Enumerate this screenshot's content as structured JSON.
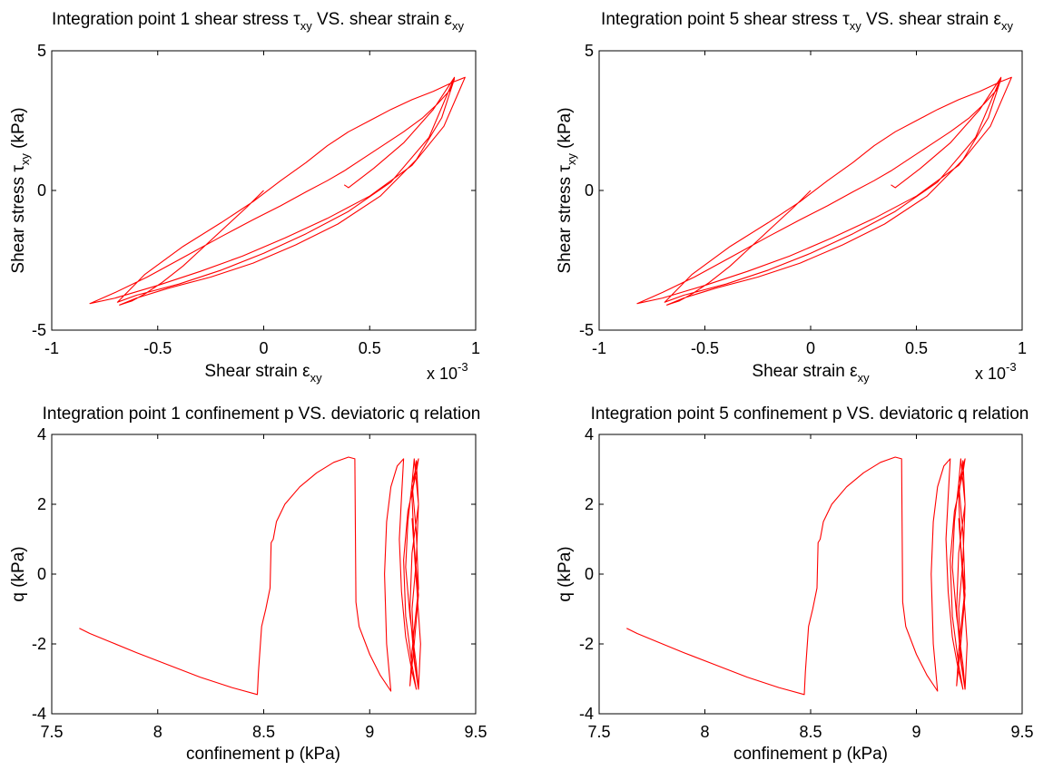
{
  "figure": {
    "line_color": "#ff0000"
  },
  "chart_data": [
    {
      "type": "line",
      "title": "Integration point 1 shear stress τxy VS. shear strain εxy",
      "title_parts": {
        "a": "Integration point 1 shear stress ",
        "tau": "τ",
        "sub1": "xy",
        "mid": " VS. shear strain ",
        "eps": "ε",
        "sub2": "xy"
      },
      "xlabel": "Shear strain εxy",
      "xlabel_parts": {
        "main": "Shear strain ",
        "eps": "ε",
        "sub": "xy"
      },
      "ylabel": "Shear stress τxy (kPa)",
      "ylabel_parts": {
        "main": "Shear stress ",
        "tau": "τ",
        "sub": "xy",
        "unit": " (kPa)"
      },
      "x_multiplier": {
        "base": "x 10",
        "exp": "-3"
      },
      "xlim": [
        -1,
        1
      ],
      "ylim": [
        -5,
        5
      ],
      "xticks": [
        "-1",
        "-0.5",
        "0",
        "0.5",
        "1"
      ],
      "yticks": [
        "-5",
        "0",
        "5"
      ],
      "grid": false,
      "series": [
        {
          "x": [
            0,
            -0.08,
            -0.18,
            -0.28,
            -0.38,
            -0.48,
            -0.56,
            -0.62,
            -0.66,
            -0.68,
            -0.6,
            -0.45,
            -0.25,
            -0.05,
            0.15,
            0.35,
            0.55,
            0.72,
            0.84,
            0.9,
            0.88,
            0.82,
            0.75,
            0.66,
            0.56,
            0.46,
            0.38,
            0.3,
            0.2,
            0.08,
            -0.05,
            -0.2,
            -0.38,
            -0.55,
            -0.7,
            -0.82,
            -0.7,
            -0.5,
            -0.3,
            -0.1,
            0.1,
            0.3,
            0.5,
            0.7,
            0.85,
            0.95,
            0.9,
            0.8,
            0.7,
            0.6,
            0.5,
            0.4,
            0.3,
            0.2,
            0.08,
            -0.05,
            -0.2,
            -0.38,
            -0.56,
            -0.69,
            -0.6,
            -0.4,
            -0.2,
            0,
            0.2,
            0.4,
            0.6,
            0.78,
            0.9,
            0.8,
            0.66,
            0.52,
            0.4,
            0.38
          ],
          "y": [
            0,
            -0.6,
            -1.3,
            -2.0,
            -2.7,
            -3.3,
            -3.7,
            -3.95,
            -4.05,
            -4.1,
            -3.85,
            -3.5,
            -3.1,
            -2.6,
            -1.95,
            -1.2,
            -0.2,
            1.1,
            2.6,
            4.0,
            3.6,
            3.1,
            2.6,
            2.1,
            1.6,
            1.1,
            0.7,
            0.35,
            -0.05,
            -0.55,
            -1.05,
            -1.65,
            -2.4,
            -3.1,
            -3.65,
            -4.05,
            -3.85,
            -3.4,
            -2.9,
            -2.35,
            -1.7,
            -1.0,
            -0.2,
            0.9,
            2.3,
            4.05,
            3.9,
            3.55,
            3.25,
            2.9,
            2.5,
            2.1,
            1.6,
            1.0,
            0.35,
            -0.4,
            -1.15,
            -2.0,
            -3.0,
            -4.0,
            -3.75,
            -3.35,
            -2.85,
            -2.25,
            -1.55,
            -0.75,
            0.3,
            1.9,
            4.05,
            2.9,
            1.7,
            0.8,
            0.1,
            0.2
          ]
        }
      ]
    },
    {
      "type": "line",
      "title": "Integration point 5 shear stress τxy VS. shear strain εxy",
      "title_parts": {
        "a": "Integration point 5 shear stress ",
        "tau": "τ",
        "sub1": "xy",
        "mid": " VS. shear strain ",
        "eps": "ε",
        "sub2": "xy"
      },
      "xlabel": "Shear strain εxy",
      "xlabel_parts": {
        "main": "Shear strain ",
        "eps": "ε",
        "sub": "xy"
      },
      "ylabel": "Shear stress τxy (kPa)",
      "ylabel_parts": {
        "main": "Shear stress ",
        "tau": "τ",
        "sub": "xy",
        "unit": " (kPa)"
      },
      "x_multiplier": {
        "base": "x 10",
        "exp": "-3"
      },
      "xlim": [
        -1,
        1
      ],
      "ylim": [
        -5,
        5
      ],
      "xticks": [
        "-1",
        "-0.5",
        "0",
        "0.5",
        "1"
      ],
      "yticks": [
        "-5",
        "0",
        "5"
      ],
      "grid": false,
      "series": [
        {
          "x": [
            0,
            -0.08,
            -0.18,
            -0.28,
            -0.38,
            -0.48,
            -0.56,
            -0.62,
            -0.66,
            -0.68,
            -0.6,
            -0.45,
            -0.25,
            -0.05,
            0.15,
            0.35,
            0.55,
            0.72,
            0.84,
            0.9,
            0.88,
            0.82,
            0.75,
            0.66,
            0.56,
            0.46,
            0.38,
            0.3,
            0.2,
            0.08,
            -0.05,
            -0.2,
            -0.38,
            -0.55,
            -0.7,
            -0.82,
            -0.7,
            -0.5,
            -0.3,
            -0.1,
            0.1,
            0.3,
            0.5,
            0.7,
            0.85,
            0.95,
            0.9,
            0.8,
            0.7,
            0.6,
            0.5,
            0.4,
            0.3,
            0.2,
            0.08,
            -0.05,
            -0.2,
            -0.38,
            -0.56,
            -0.69,
            -0.6,
            -0.4,
            -0.2,
            0,
            0.2,
            0.4,
            0.6,
            0.78,
            0.9,
            0.8,
            0.66,
            0.52,
            0.4,
            0.38
          ],
          "y": [
            0,
            -0.6,
            -1.3,
            -2.0,
            -2.7,
            -3.3,
            -3.7,
            -3.95,
            -4.05,
            -4.1,
            -3.85,
            -3.5,
            -3.1,
            -2.6,
            -1.95,
            -1.2,
            -0.2,
            1.1,
            2.6,
            4.0,
            3.6,
            3.1,
            2.6,
            2.1,
            1.6,
            1.1,
            0.7,
            0.35,
            -0.05,
            -0.55,
            -1.05,
            -1.65,
            -2.4,
            -3.1,
            -3.65,
            -4.05,
            -3.85,
            -3.4,
            -2.9,
            -2.35,
            -1.7,
            -1.0,
            -0.2,
            0.9,
            2.3,
            4.05,
            3.9,
            3.55,
            3.25,
            2.9,
            2.5,
            2.1,
            1.6,
            1.0,
            0.35,
            -0.4,
            -1.15,
            -2.0,
            -3.0,
            -4.0,
            -3.75,
            -3.35,
            -2.85,
            -2.25,
            -1.55,
            -0.75,
            0.3,
            1.9,
            4.05,
            2.9,
            1.7,
            0.8,
            0.1,
            0.2
          ]
        }
      ]
    },
    {
      "type": "line",
      "title": "Integration point 1 confinement p VS. deviatoric q relation",
      "xlabel": "confinement p (kPa)",
      "ylabel": "q (kPa)",
      "xlim": [
        7.5,
        9.5
      ],
      "ylim": [
        -4,
        4
      ],
      "xticks": [
        "7.5",
        "8",
        "8.5",
        "9",
        "9.5"
      ],
      "yticks": [
        "-4",
        "-2",
        "0",
        "2",
        "4"
      ],
      "grid": false,
      "series": [
        {
          "x": [
            7.63,
            7.68,
            7.78,
            7.9,
            8.05,
            8.2,
            8.35,
            8.47,
            8.475,
            8.49,
            8.51,
            8.53,
            8.535,
            8.545,
            8.56,
            8.6,
            8.67,
            8.75,
            8.83,
            8.9,
            8.93,
            8.935,
            8.95,
            9.0,
            9.05,
            9.1,
            9.08,
            9.07,
            9.08,
            9.1,
            9.13,
            9.16,
            9.15,
            9.14,
            9.15,
            9.17,
            9.2,
            9.22,
            9.2,
            9.17,
            9.16,
            9.18,
            9.22,
            9.23,
            9.2,
            9.18,
            9.17,
            9.19,
            9.22,
            9.23,
            9.21,
            9.19,
            9.2,
            9.23,
            9.22,
            9.2,
            9.21,
            9.23,
            9.21,
            9.19,
            9.2,
            9.23,
            9.22,
            9.2,
            9.21,
            9.23,
            9.22,
            9.2,
            9.21,
            9.23,
            9.24,
            9.22,
            9.2
          ],
          "y": [
            -1.55,
            -1.7,
            -1.95,
            -2.25,
            -2.6,
            -2.95,
            -3.25,
            -3.45,
            -2.8,
            -1.5,
            -1.0,
            -0.4,
            0.9,
            1.0,
            1.5,
            2.0,
            2.5,
            2.9,
            3.2,
            3.35,
            3.3,
            -0.8,
            -1.5,
            -2.3,
            -2.9,
            -3.35,
            -2.0,
            0.0,
            1.5,
            2.5,
            3.1,
            3.3,
            2.2,
            1.0,
            -0.5,
            -1.8,
            -2.8,
            -3.3,
            -2.6,
            -1.2,
            0.4,
            1.8,
            2.9,
            3.3,
            2.6,
            1.5,
            0.2,
            -1.2,
            -2.6,
            -3.3,
            -2.5,
            -1.0,
            0.6,
            2.0,
            3.25,
            2.2,
            0.8,
            -0.6,
            -2.0,
            -3.2,
            -2.2,
            -0.4,
            1.2,
            2.6,
            3.3,
            2.0,
            0.4,
            -1.0,
            -2.4,
            -3.3,
            -2.0,
            -0.2,
            1.6
          ]
        }
      ]
    },
    {
      "type": "line",
      "title": "Integration point 5 confinement p VS. deviatoric q relation",
      "xlabel": "confinement p (kPa)",
      "ylabel": "q (kPa)",
      "xlim": [
        7.5,
        9.5
      ],
      "ylim": [
        -4,
        4
      ],
      "xticks": [
        "7.5",
        "8",
        "8.5",
        "9",
        "9.5"
      ],
      "yticks": [
        "-4",
        "-2",
        "0",
        "2",
        "4"
      ],
      "grid": false,
      "series": [
        {
          "x": [
            7.63,
            7.68,
            7.78,
            7.9,
            8.05,
            8.2,
            8.35,
            8.47,
            8.475,
            8.49,
            8.51,
            8.53,
            8.535,
            8.545,
            8.56,
            8.6,
            8.67,
            8.75,
            8.83,
            8.9,
            8.93,
            8.935,
            8.95,
            9.0,
            9.05,
            9.1,
            9.08,
            9.07,
            9.08,
            9.1,
            9.13,
            9.16,
            9.15,
            9.14,
            9.15,
            9.17,
            9.2,
            9.22,
            9.2,
            9.17,
            9.16,
            9.18,
            9.22,
            9.23,
            9.2,
            9.18,
            9.17,
            9.19,
            9.22,
            9.23,
            9.21,
            9.19,
            9.2,
            9.23,
            9.22,
            9.2,
            9.21,
            9.23,
            9.21,
            9.19,
            9.2,
            9.23,
            9.22,
            9.2,
            9.21,
            9.23,
            9.22,
            9.2,
            9.21,
            9.23,
            9.24,
            9.22,
            9.2
          ],
          "y": [
            -1.55,
            -1.7,
            -1.95,
            -2.25,
            -2.6,
            -2.95,
            -3.25,
            -3.45,
            -2.8,
            -1.5,
            -1.0,
            -0.4,
            0.9,
            1.0,
            1.5,
            2.0,
            2.5,
            2.9,
            3.2,
            3.35,
            3.3,
            -0.8,
            -1.5,
            -2.3,
            -2.9,
            -3.35,
            -2.0,
            0.0,
            1.5,
            2.5,
            3.1,
            3.3,
            2.2,
            1.0,
            -0.5,
            -1.8,
            -2.8,
            -3.3,
            -2.6,
            -1.2,
            0.4,
            1.8,
            2.9,
            3.3,
            2.6,
            1.5,
            0.2,
            -1.2,
            -2.6,
            -3.3,
            -2.5,
            -1.0,
            0.6,
            2.0,
            3.25,
            2.2,
            0.8,
            -0.6,
            -2.0,
            -3.2,
            -2.2,
            -0.4,
            1.2,
            2.6,
            3.3,
            2.0,
            0.4,
            -1.0,
            -2.4,
            -3.3,
            -2.0,
            -0.2,
            1.6
          ]
        }
      ]
    }
  ]
}
